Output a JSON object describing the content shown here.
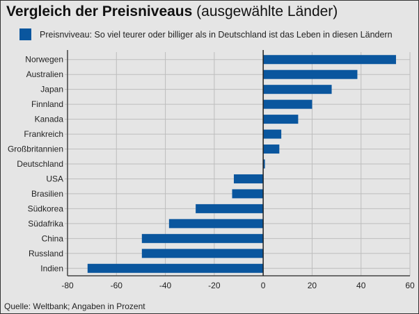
{
  "chart_data": {
    "type": "bar",
    "orientation": "horizontal",
    "title": "Vergleich der Preisniveaus",
    "subtitle": "(ausgewählte Länder)",
    "categories": [
      "Norwegen",
      "Australien",
      "Japan",
      "Finnland",
      "Kanada",
      "Frankreich",
      "Großbritannien",
      "Deutschland",
      "USA",
      "Brasilien",
      "Südkorea",
      "Südafrika",
      "China",
      "Russland",
      "Indien"
    ],
    "series": [
      {
        "name": "Preisnviveau: So viel teurer oder billiger als in Deutschland ist das Leben in diesen Ländern",
        "values": [
          54.3,
          38.5,
          28,
          20,
          14.3,
          7.4,
          6.6,
          0.7,
          -12,
          -12.7,
          -27.6,
          -38.5,
          -49.6,
          -49.6,
          -71.8
        ],
        "color": "#0a569e"
      }
    ],
    "xlim": [
      -80,
      60
    ],
    "xticks": [
      "-80",
      "-60",
      "-40",
      "-20",
      "0",
      "20",
      "40",
      "60"
    ],
    "grid": true,
    "legend_position": "top",
    "source": "Quelle: Weltbank; Angaben in Prozent"
  }
}
